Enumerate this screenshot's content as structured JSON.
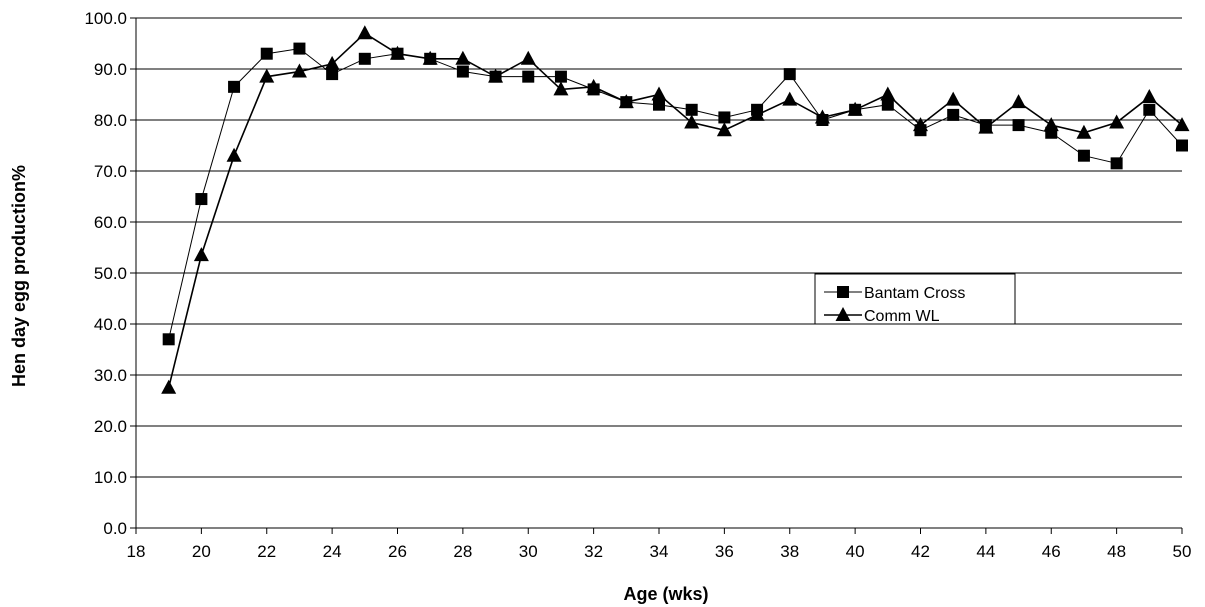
{
  "chart_data": {
    "type": "line",
    "title": "",
    "xlabel": "Age (wks)",
    "ylabel": "Hen day egg production%",
    "xlim": [
      18,
      50
    ],
    "ylim": [
      0,
      100
    ],
    "x_ticks": [
      "18",
      "20",
      "22",
      "24",
      "26",
      "28",
      "30",
      "32",
      "34",
      "36",
      "38",
      "40",
      "42",
      "44",
      "46",
      "48",
      "50"
    ],
    "y_ticks": [
      "0.0",
      "10.0",
      "20.0",
      "30.0",
      "40.0",
      "50.0",
      "60.0",
      "70.0",
      "80.0",
      "90.0",
      "100.0"
    ],
    "grid": "horizontal",
    "legend": "center-right",
    "x": [
      19,
      20,
      21,
      22,
      23,
      24,
      25,
      26,
      27,
      28,
      29,
      30,
      31,
      32,
      33,
      34,
      35,
      36,
      37,
      38,
      39,
      40,
      41,
      42,
      43,
      44,
      45,
      46,
      47,
      48,
      49,
      50
    ],
    "series": [
      {
        "name": "Bantam Cross",
        "marker": "square",
        "values": [
          37.0,
          64.5,
          86.5,
          93.0,
          94.0,
          89.0,
          92.0,
          93.0,
          92.0,
          89.5,
          88.5,
          88.5,
          88.5,
          86.0,
          83.5,
          83.0,
          82.0,
          80.5,
          82.0,
          89.0,
          80.0,
          82.0,
          83.0,
          78.0,
          81.0,
          79.0,
          79.0,
          77.5,
          73.0,
          71.5,
          82.0,
          75.0
        ]
      },
      {
        "name": "Comm WL",
        "marker": "triangle",
        "values": [
          27.5,
          53.5,
          73.0,
          88.5,
          89.5,
          91.0,
          97.0,
          93.0,
          92.0,
          92.0,
          88.5,
          92.0,
          86.0,
          86.5,
          83.5,
          85.0,
          79.5,
          78.0,
          81.0,
          84.0,
          80.5,
          82.0,
          85.0,
          79.0,
          84.0,
          78.5,
          83.5,
          79.0,
          77.5,
          79.5,
          84.5,
          79.0
        ]
      }
    ],
    "colors": {
      "line": "#000000",
      "grid": "#000000",
      "background": "#ffffff"
    }
  }
}
